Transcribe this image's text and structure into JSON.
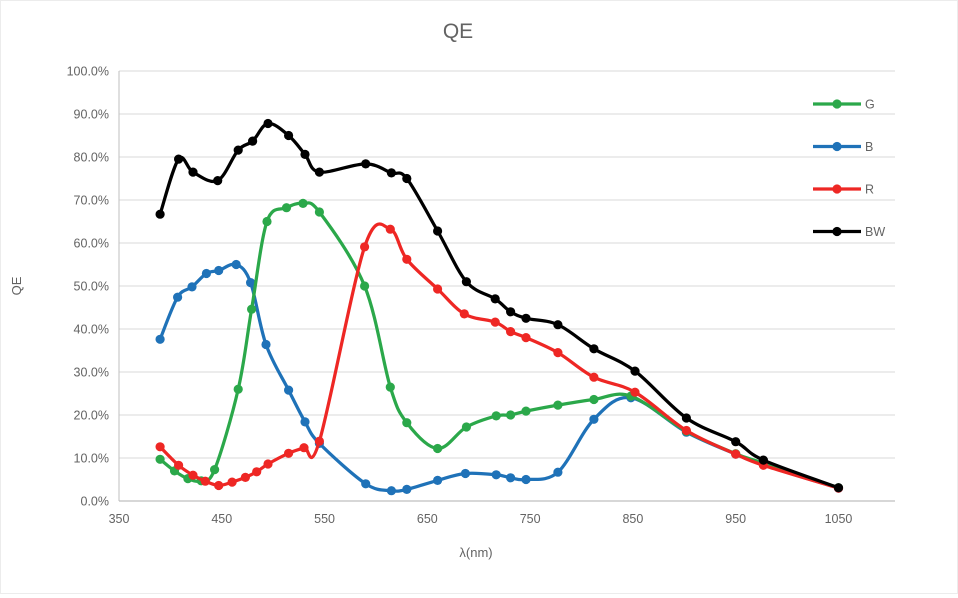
{
  "chart": {
    "title": "QE",
    "y_axis_title": "QE",
    "x_axis_title": "λ(nm)"
  },
  "chart_data": {
    "type": "line",
    "title": "QE",
    "xlabel": "λ(nm)",
    "ylabel": "QE",
    "xlim": [
      350,
      1105
    ],
    "ylim_percent": [
      0,
      100
    ],
    "x_ticks": [
      350,
      450,
      550,
      650,
      750,
      850,
      950,
      1050
    ],
    "x_tick_labels": [
      "350",
      "450",
      "550",
      "650",
      "750",
      "850",
      "950",
      "1050"
    ],
    "y_ticks_percent": [
      0,
      10,
      20,
      30,
      40,
      50,
      60,
      70,
      80,
      90,
      100
    ],
    "y_tick_labels": [
      "0.0%",
      "10.0%",
      "20.0%",
      "30.0%",
      "40.0%",
      "50.0%",
      "60.0%",
      "70.0%",
      "80.0%",
      "90.0%",
      "100.0%"
    ],
    "grid": "horizontal",
    "legend_position": "right",
    "legend_order": [
      "G",
      "B",
      "R",
      "BW"
    ],
    "colors": {
      "grid": "#d9d9d9",
      "axis": "#bfbfbf",
      "text": "#636363",
      "G": "#2ba84a",
      "B": "#1f72b8",
      "R": "#ee2724",
      "BW": "#000000"
    },
    "series": [
      {
        "name": "G",
        "color": "#2ba84a",
        "points": [
          [
            390,
            9.7
          ],
          [
            404,
            7.0
          ],
          [
            417,
            5.2
          ],
          [
            430,
            4.7
          ],
          [
            443,
            7.3
          ],
          [
            466,
            26.0
          ],
          [
            479,
            44.6
          ],
          [
            494,
            65.0
          ],
          [
            513,
            68.2
          ],
          [
            529,
            69.2
          ],
          [
            545,
            67.2
          ],
          [
            589,
            50.0
          ],
          [
            614,
            26.5
          ],
          [
            630,
            18.2
          ],
          [
            660,
            12.2
          ],
          [
            688,
            17.2
          ],
          [
            717,
            19.8
          ],
          [
            731,
            20.0
          ],
          [
            746,
            20.9
          ],
          [
            777,
            22.3
          ],
          [
            812,
            23.6
          ],
          [
            848,
            24.4
          ],
          [
            902,
            16.2
          ],
          [
            950,
            11.0
          ],
          [
            977,
            8.8
          ],
          [
            1050,
            3.1
          ]
        ]
      },
      {
        "name": "B",
        "color": "#1f72b8",
        "points": [
          [
            390,
            37.6
          ],
          [
            407,
            47.4
          ],
          [
            421,
            49.8
          ],
          [
            435,
            52.9
          ],
          [
            447,
            53.6
          ],
          [
            464,
            55.0
          ],
          [
            478,
            50.8
          ],
          [
            493,
            36.4
          ],
          [
            515,
            25.8
          ],
          [
            531,
            18.4
          ],
          [
            545,
            13.4
          ],
          [
            590,
            4.0
          ],
          [
            615,
            2.4
          ],
          [
            630,
            2.7
          ],
          [
            660,
            4.8
          ],
          [
            687,
            6.4
          ],
          [
            717,
            6.1
          ],
          [
            731,
            5.4
          ],
          [
            746,
            5.0
          ],
          [
            777,
            6.7
          ],
          [
            812,
            19.0
          ],
          [
            848,
            24.0
          ],
          [
            902,
            16.0
          ],
          [
            950,
            10.9
          ],
          [
            977,
            8.4
          ],
          [
            1050,
            3.0
          ]
        ]
      },
      {
        "name": "R",
        "color": "#ee2724",
        "points": [
          [
            390,
            12.6
          ],
          [
            408,
            8.3
          ],
          [
            422,
            6.0
          ],
          [
            434,
            4.6
          ],
          [
            447,
            3.6
          ],
          [
            460,
            4.4
          ],
          [
            473,
            5.5
          ],
          [
            484,
            6.8
          ],
          [
            495,
            8.6
          ],
          [
            515,
            11.1
          ],
          [
            530,
            12.4
          ],
          [
            545,
            13.9
          ],
          [
            589,
            59.1
          ],
          [
            614,
            63.2
          ],
          [
            630,
            56.2
          ],
          [
            660,
            49.3
          ],
          [
            686,
            43.5
          ],
          [
            716,
            41.6
          ],
          [
            731,
            39.4
          ],
          [
            746,
            38.0
          ],
          [
            777,
            34.5
          ],
          [
            812,
            28.8
          ],
          [
            852,
            25.3
          ],
          [
            902,
            16.4
          ],
          [
            950,
            10.9
          ],
          [
            977,
            8.3
          ],
          [
            1050,
            3.0
          ]
        ]
      },
      {
        "name": "BW",
        "color": "#000000",
        "points": [
          [
            390,
            66.7
          ],
          [
            408,
            79.5
          ],
          [
            422,
            76.5
          ],
          [
            446,
            74.5
          ],
          [
            466,
            81.6
          ],
          [
            480,
            83.7
          ],
          [
            495,
            87.8
          ],
          [
            515,
            85.0
          ],
          [
            531,
            80.6
          ],
          [
            545,
            76.5
          ],
          [
            590,
            78.4
          ],
          [
            615,
            76.3
          ],
          [
            630,
            75.0
          ],
          [
            660,
            62.8
          ],
          [
            688,
            51.0
          ],
          [
            716,
            47.0
          ],
          [
            731,
            44.0
          ],
          [
            746,
            42.5
          ],
          [
            777,
            41.0
          ],
          [
            812,
            35.4
          ],
          [
            852,
            30.2
          ],
          [
            902,
            19.3
          ],
          [
            950,
            13.8
          ],
          [
            977,
            9.5
          ],
          [
            1050,
            3.1
          ]
        ]
      }
    ]
  }
}
